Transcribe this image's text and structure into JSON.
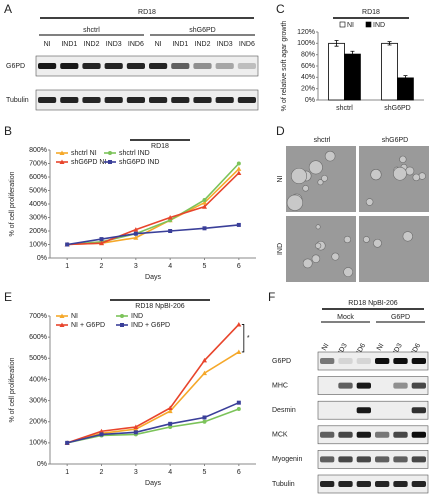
{
  "panel_labels": [
    "A",
    "B",
    "C",
    "D",
    "E",
    "F"
  ],
  "blot_a": {
    "title": "RD18",
    "groups": [
      "shctrl",
      "shG6PD"
    ],
    "lanes": [
      "NI",
      "IND1",
      "IND2",
      "IND3",
      "IND6",
      "NI",
      "IND1",
      "IND2",
      "IND3",
      "IND6"
    ],
    "rows": [
      "G6PD",
      "Tubulin"
    ],
    "bands": [
      [
        0.9,
        0.9,
        0.85,
        0.85,
        0.85,
        0.85,
        0.6,
        0.4,
        0.3,
        0.2
      ],
      [
        0.85,
        0.85,
        0.85,
        0.85,
        0.85,
        0.85,
        0.85,
        0.85,
        0.85,
        0.85
      ]
    ]
  },
  "micrographs": {
    "columns": [
      "shctrl",
      "shG6PD"
    ],
    "rows": [
      "NI",
      "IND"
    ]
  },
  "blot_f": {
    "title": "RD18 NpBI-206",
    "groups": [
      "Mock",
      "G6PD"
    ],
    "lanes": [
      "NI",
      "IND3",
      "IND6",
      "NI",
      "IND3",
      "IND6"
    ],
    "rows": [
      "G6PD",
      "MHC",
      "Desmin",
      "MCK",
      "Myogenin",
      "Tubulin"
    ],
    "bands": [
      [
        0.5,
        0.1,
        0.1,
        0.95,
        0.95,
        0.95
      ],
      [
        0,
        0.6,
        0.9,
        0,
        0.4,
        0.7
      ],
      [
        0,
        0,
        0.9,
        0,
        0,
        0.8
      ],
      [
        0.6,
        0.7,
        0.9,
        0.5,
        0.7,
        0.95
      ],
      [
        0.6,
        0.7,
        0.7,
        0.6,
        0.6,
        0.7
      ],
      [
        0.85,
        0.85,
        0.85,
        0.85,
        0.85,
        0.85
      ]
    ]
  },
  "chart_data": [
    {
      "type": "line",
      "title": "RD18",
      "x_label": "Days",
      "y_label": "% of cell proliferation",
      "x": [
        1,
        2,
        3,
        4,
        5,
        6
      ],
      "xlim": [
        0.5,
        6.5
      ],
      "xticks": [
        1,
        2,
        3,
        4,
        5,
        6
      ],
      "ylim": [
        0,
        800
      ],
      "yticks": [
        {
          "value": 0,
          "label": "0%"
        },
        {
          "value": 100,
          "label": "100%"
        },
        {
          "value": 200,
          "label": "200%"
        },
        {
          "value": 300,
          "label": "300%"
        },
        {
          "value": 400,
          "label": "400%"
        },
        {
          "value": 500,
          "label": "500%"
        },
        {
          "value": 600,
          "label": "600%"
        },
        {
          "value": 700,
          "label": "700%"
        },
        {
          "value": 800,
          "label": "800%"
        }
      ],
      "series": [
        {
          "name": "shctrl NI",
          "color": "#f5a82a",
          "marker": "triangle",
          "values": [
            100,
            110,
            150,
            280,
            410,
            660
          ]
        },
        {
          "name": "shctrl IND",
          "color": "#7cc35a",
          "marker": "circle",
          "values": [
            100,
            120,
            180,
            280,
            430,
            700
          ]
        },
        {
          "name": "shG6PD NI",
          "color": "#e8452c",
          "marker": "triangle",
          "values": [
            100,
            110,
            210,
            300,
            380,
            630
          ]
        },
        {
          "name": "shG6PD IND",
          "color": "#3a3f99",
          "marker": "square",
          "values": [
            100,
            140,
            180,
            200,
            220,
            245
          ]
        }
      ]
    },
    {
      "type": "bar",
      "title": "RD18",
      "y_label": "% of relative soft agar growth",
      "categories": [
        "shctrl",
        "shG6PD"
      ],
      "ylim": [
        0,
        120
      ],
      "yticks": [
        {
          "value": 0,
          "label": "0%"
        },
        {
          "value": 20,
          "label": "20%"
        },
        {
          "value": 40,
          "label": "40%"
        },
        {
          "value": 60,
          "label": "60%"
        },
        {
          "value": 80,
          "label": "80%"
        },
        {
          "value": 100,
          "label": "100%"
        },
        {
          "value": 120,
          "label": "120%"
        }
      ],
      "series": [
        {
          "name": "NI",
          "color": "#ffffff",
          "values": [
            100,
            100
          ],
          "errors": [
            5,
            3
          ]
        },
        {
          "name": "IND",
          "color": "#000000",
          "values": [
            81,
            39
          ],
          "errors": [
            5,
            4
          ]
        }
      ]
    },
    {
      "type": "line",
      "title": "RD18 NpBI-206",
      "x_label": "Days",
      "y_label": "% of cell proliferation",
      "x": [
        1,
        2,
        3,
        4,
        5,
        6
      ],
      "xlim": [
        0.5,
        6.5
      ],
      "xticks": [
        1,
        2,
        3,
        4,
        5,
        6
      ],
      "ylim": [
        0,
        700
      ],
      "yticks": [
        {
          "value": 0,
          "label": "0%"
        },
        {
          "value": 100,
          "label": "100%"
        },
        {
          "value": 200,
          "label": "200%"
        },
        {
          "value": 300,
          "label": "300%"
        },
        {
          "value": 400,
          "label": "400%"
        },
        {
          "value": 500,
          "label": "500%"
        },
        {
          "value": 600,
          "label": "600%"
        },
        {
          "value": 700,
          "label": "700%"
        }
      ],
      "annotation": "*",
      "series": [
        {
          "name": "NI",
          "color": "#f5a82a",
          "marker": "triangle",
          "values": [
            100,
            145,
            165,
            250,
            430,
            530
          ]
        },
        {
          "name": "IND",
          "color": "#7cc35a",
          "marker": "circle",
          "values": [
            100,
            135,
            140,
            175,
            200,
            260
          ]
        },
        {
          "name": "NI + G6PD",
          "color": "#e8452c",
          "marker": "triangle",
          "values": [
            100,
            155,
            175,
            265,
            490,
            660
          ]
        },
        {
          "name": "IND + G6PD",
          "color": "#3a3f99",
          "marker": "square",
          "values": [
            100,
            140,
            150,
            190,
            220,
            290
          ]
        }
      ]
    }
  ]
}
